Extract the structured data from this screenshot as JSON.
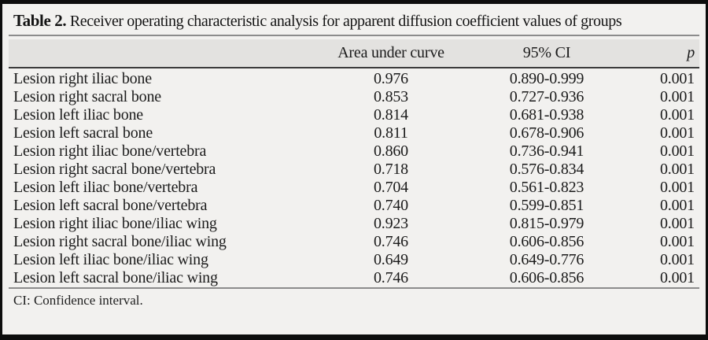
{
  "title": {
    "label": "Table 2.",
    "text": "Receiver operating characteristic analysis for apparent diffusion coefficient values of groups"
  },
  "table": {
    "columns": [
      "",
      "Area under curve",
      "95% CI",
      "p"
    ],
    "rows": [
      {
        "group": "Lesion right iliac bone",
        "auc": "0.976",
        "ci": "0.890-0.999",
        "p": "0.001"
      },
      {
        "group": "Lesion right sacral bone",
        "auc": "0.853",
        "ci": "0.727-0.936",
        "p": "0.001"
      },
      {
        "group": "Lesion left iliac bone",
        "auc": "0.814",
        "ci": "0.681-0.938",
        "p": "0.001"
      },
      {
        "group": "Lesion left sacral bone",
        "auc": "0.811",
        "ci": "0.678-0.906",
        "p": "0.001"
      },
      {
        "group": "Lesion right iliac bone/vertebra",
        "auc": "0.860",
        "ci": "0.736-0.941",
        "p": "0.001"
      },
      {
        "group": "Lesion right sacral bone/vertebra",
        "auc": "0.718",
        "ci": "0.576-0.834",
        "p": "0.001"
      },
      {
        "group": "Lesion left iliac bone/vertebra",
        "auc": "0.704",
        "ci": "0.561-0.823",
        "p": "0.001"
      },
      {
        "group": "Lesion left sacral bone/vertebra",
        "auc": "0.740",
        "ci": "0.599-0.851",
        "p": "0.001"
      },
      {
        "group": "Lesion right iliac bone/iliac wing",
        "auc": "0.923",
        "ci": "0.815-0.979",
        "p": "0.001"
      },
      {
        "group": "Lesion right sacral bone/iliac wing",
        "auc": "0.746",
        "ci": "0.606-0.856",
        "p": "0.001"
      },
      {
        "group": "Lesion left iliac bone/iliac wing",
        "auc": "0.649",
        "ci": "0.649-0.776",
        "p": "0.001"
      },
      {
        "group": "Lesion left sacral bone/iliac wing",
        "auc": "0.746",
        "ci": "0.606-0.856",
        "p": "0.001"
      }
    ]
  },
  "footnote": "CI: Confidence interval.",
  "colors": {
    "panel_background": "#f2f1ef",
    "header_band": "#e3e2e0",
    "border": "#0d0d0d",
    "text": "#1b1b1b"
  }
}
